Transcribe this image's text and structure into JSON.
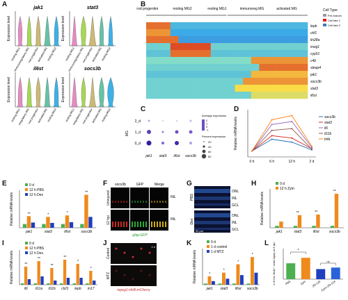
{
  "panels": {
    "A": {
      "letter": "A",
      "ylabel": "Expression level",
      "groups": [
        "resting MG1",
        "immunoregulatory MG",
        "rod progenitor",
        "activated MG",
        "resting MG2"
      ],
      "colors": [
        "#e78ac3",
        "#a6d854",
        "#ccb974",
        "#66c2a5",
        "#3db1e6"
      ],
      "genes": [
        "jak1",
        "stat3",
        "il6st",
        "socs3b"
      ]
    },
    "B": {
      "letter": "B",
      "stages": [
        "rod progenitor",
        "resting MG2",
        "resting MG1",
        "immunoreg MG",
        "activated MG"
      ],
      "genes": [
        "lepb",
        "ckf1",
        "lin28a",
        "insig1",
        "cyp51",
        "c4b",
        "steap4",
        "jak1",
        "socs3b",
        "stat3",
        "il6st"
      ],
      "legend_title": "Cell Type",
      "legend_items": [
        "Pre-branch",
        "Cell fate 1",
        "Cell fate 2"
      ],
      "legend_colors": [
        "#999999",
        "#e41a1c",
        "#377eb8"
      ]
    },
    "C": {
      "letter": "C",
      "ylabel": "MG",
      "rows": [
        "2_d",
        "1_d",
        "0_d"
      ],
      "cols": [
        "jak1",
        "stat3",
        "il6st",
        "socs3b"
      ],
      "avg_title": "Average expression",
      "avg_ticks": [
        "2",
        "1",
        "0",
        "-1"
      ],
      "pct_title": "Percent expression",
      "pct_ticks": [
        "20",
        "40",
        "60",
        "80"
      ]
    },
    "D": {
      "letter": "D",
      "ylabel": "Relative mRNA levels",
      "xticks": [
        "0 h",
        "6 h",
        "12 h",
        "2 d"
      ],
      "series": [
        "socs3b",
        "stat3",
        "il6",
        "il11b",
        "tnfa"
      ],
      "colors": [
        "#1f6fb5",
        "#d62728",
        "#9467bd",
        "#8c564b",
        "#ff7f0e"
      ]
    },
    "E": {
      "letter": "E",
      "ylabel": "Relative mRNA levels",
      "legend": [
        "0 d",
        "12 h PBS",
        "12 h Dex"
      ],
      "colors": [
        "#4caf50",
        "#ef8a1c",
        "#1f3fbf"
      ],
      "genes": [
        "jak1",
        "stat3",
        "il6st",
        "socs3b"
      ]
    },
    "F": {
      "letter": "F",
      "cols": [
        "socs3b",
        "GFP",
        "Merge"
      ],
      "rows": [
        "Uninjured",
        "12 hpi"
      ],
      "side": [
        "INL",
        "INL"
      ],
      "caption": "gfap:GFP"
    },
    "G": {
      "letter": "G",
      "rows": [
        "PBS",
        "Dex"
      ],
      "layers": [
        "ONL",
        "INL",
        "GCL"
      ],
      "scale": "50 µm"
    },
    "H": {
      "letter": "H",
      "ylabel": "Relative mRNA levels",
      "legend": [
        "0 d",
        "12 h Zym"
      ],
      "colors": [
        "#4caf50",
        "#ef8a1c"
      ],
      "genes": [
        "jak1",
        "stat3",
        "il6st",
        "socs3b"
      ]
    },
    "I": {
      "letter": "I",
      "ylabel": "Relative mRNA levels",
      "legend": [
        "0 d",
        "12 h PBS",
        "12 h Dex"
      ],
      "colors": [
        "#4caf50",
        "#ef8a1c",
        "#1f3fbf"
      ],
      "genes": [
        "il6",
        "il11a",
        "il11b",
        "clcf1",
        "lepb",
        "m17"
      ]
    },
    "J": {
      "letter": "J",
      "rows": [
        "Control",
        "MTZ"
      ],
      "caption": "mpeg1:nfsB-mCherry",
      "scale": "2 d"
    },
    "K": {
      "letter": "K",
      "ylabel": "Relative mRNA levels",
      "legend": [
        "0 d",
        "1 d control",
        "1 d MTZ"
      ],
      "colors": [
        "#4caf50",
        "#ef8a1c",
        "#1f3fbf"
      ],
      "genes": [
        "jak1",
        "stat3",
        "il6st",
        "socs3b"
      ]
    },
    "L": {
      "letter": "L",
      "ylabel": "# of INL BrdU⁺ cells/ injury at 3 dpi",
      "categories": [
        "PBS",
        "Zym",
        "JSI-124",
        "Zym+JSI-124"
      ],
      "colors": [
        "#4caf50",
        "#ef8a1c",
        "#1f3fbf",
        "#2a63d8"
      ],
      "sig": [
        "*",
        "ns"
      ]
    }
  },
  "chart_data": [
    {
      "type": "line",
      "panel": "D",
      "ylabel": "Relative mRNA levels",
      "categories": [
        "0 h",
        "6 h",
        "12 h",
        "2 d"
      ],
      "series": [
        {
          "name": "socs3b",
          "values": [
            1,
            3.0,
            2.5,
            1.2
          ]
        },
        {
          "name": "stat3",
          "values": [
            1,
            3.6,
            3.2,
            1.4
          ]
        },
        {
          "name": "il6",
          "values": [
            1,
            5.5,
            6.0,
            1.6
          ]
        },
        {
          "name": "il11b",
          "values": [
            1,
            4.5,
            4.8,
            1.3
          ]
        },
        {
          "name": "tnfa",
          "values": [
            1,
            6.3,
            7.0,
            1.8
          ]
        }
      ]
    },
    {
      "type": "bar",
      "panel": "E",
      "ylabel": "Relative mRNA levels",
      "ylim": [
        0,
        10
      ],
      "categories": [
        "jak1",
        "stat3",
        "il6st",
        "socs3b"
      ],
      "series": [
        {
          "name": "0 d",
          "values": [
            1,
            1,
            1,
            1
          ]
        },
        {
          "name": "12 h PBS",
          "values": [
            3.1,
            2.9,
            3.3,
            8.8
          ]
        },
        {
          "name": "12 h Dex",
          "values": [
            1.4,
            1.3,
            1.5,
            2.9
          ]
        }
      ],
      "annotations": [
        "**",
        "*",
        "*",
        "**"
      ]
    },
    {
      "type": "bar",
      "panel": "H",
      "ylabel": "Relative mRNA levels",
      "ylim": [
        0,
        20
      ],
      "categories": [
        "jak1",
        "stat3",
        "il6st",
        "socs3b"
      ],
      "series": [
        {
          "name": "0 d",
          "values": [
            1,
            1,
            1,
            1
          ]
        },
        {
          "name": "12 h Zym",
          "values": [
            3.2,
            6.5,
            6.8,
            17.5
          ]
        }
      ],
      "annotations": [
        "",
        "**",
        "**",
        "**"
      ]
    },
    {
      "type": "bar",
      "panel": "I",
      "ylabel": "Relative mRNA levels",
      "ylim": [
        0,
        25
      ],
      "categories": [
        "il6",
        "il11a",
        "il11b",
        "clcf1",
        "lepb",
        "m17"
      ],
      "series": [
        {
          "name": "0 d",
          "values": [
            1,
            1,
            1,
            1,
            1,
            1
          ]
        },
        {
          "name": "12 h PBS",
          "values": [
            13,
            17,
            12,
            18,
            15,
            10
          ]
        },
        {
          "name": "12 h Dex",
          "values": [
            4,
            6,
            3,
            5,
            5,
            3
          ]
        }
      ],
      "annotations": [
        "**",
        "**",
        "**",
        "**",
        "*",
        "*"
      ]
    },
    {
      "type": "bar",
      "panel": "K",
      "ylabel": "Relative mRNA levels",
      "ylim": [
        0,
        30
      ],
      "categories": [
        "jak1",
        "stat3",
        "il6st",
        "socs3b"
      ],
      "series": [
        {
          "name": "0 d",
          "values": [
            1,
            1,
            1,
            1
          ]
        },
        {
          "name": "1 d control",
          "values": [
            7,
            10,
            17,
            23
          ]
        },
        {
          "name": "1 d MTZ",
          "values": [
            3,
            5,
            8,
            10
          ]
        }
      ],
      "annotations": [
        "*",
        "*",
        "*",
        "*"
      ]
    },
    {
      "type": "bar",
      "panel": "L",
      "ylabel": "# of INL BrdU⁺ cells/ injury at 3 dpi",
      "ylim": [
        0,
        1000
      ],
      "categories": [
        "PBS",
        "Zym",
        "JSI-124",
        "Zym+JSI-124"
      ],
      "values": [
        520,
        700,
        330,
        380
      ]
    }
  ]
}
